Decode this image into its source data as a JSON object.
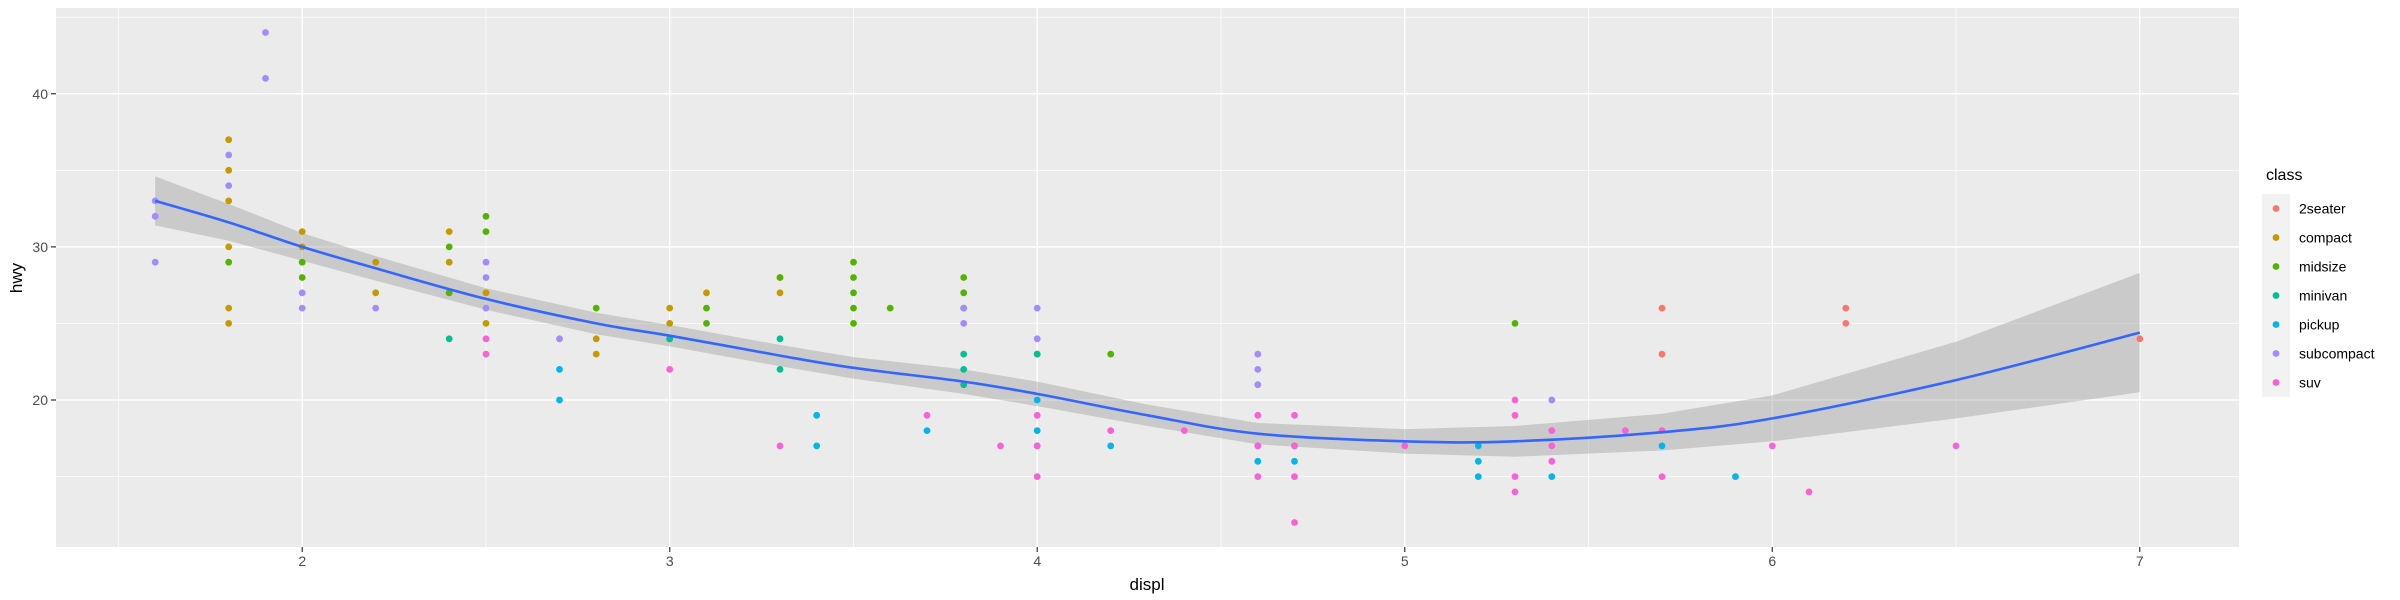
{
  "chart_data": {
    "type": "scatter",
    "title": "",
    "xlabel": "displ",
    "ylabel": "hwy",
    "xlim": [
      1.33,
      7.27
    ],
    "ylim": [
      10.4,
      45.6
    ],
    "x_ticks": [
      2,
      3,
      4,
      5,
      6,
      7
    ],
    "y_ticks": [
      20,
      30,
      40
    ],
    "grid": true,
    "legend": {
      "title": "class",
      "placement": "right"
    },
    "series": [
      {
        "name": "2seater",
        "color": "#F8766D",
        "points": [
          [
            5.7,
            26
          ],
          [
            5.7,
            23
          ],
          [
            6.2,
            26
          ],
          [
            6.2,
            25
          ],
          [
            7.0,
            24
          ]
        ]
      },
      {
        "name": "compact",
        "color": "#C49A00",
        "points": [
          [
            1.8,
            37
          ],
          [
            1.8,
            35
          ],
          [
            1.8,
            33
          ],
          [
            1.8,
            30
          ],
          [
            1.8,
            26
          ],
          [
            1.8,
            25
          ],
          [
            2.0,
            31
          ],
          [
            2.0,
            30
          ],
          [
            2.2,
            29
          ],
          [
            2.2,
            27
          ],
          [
            2.4,
            31
          ],
          [
            2.4,
            29
          ],
          [
            2.4,
            27
          ],
          [
            2.5,
            27
          ],
          [
            2.5,
            25
          ],
          [
            2.8,
            24
          ],
          [
            2.8,
            23
          ],
          [
            3.0,
            26
          ],
          [
            3.0,
            25
          ],
          [
            3.1,
            27
          ],
          [
            3.3,
            28
          ],
          [
            3.3,
            27
          ]
        ]
      },
      {
        "name": "midsize",
        "color": "#53B400",
        "points": [
          [
            1.8,
            29
          ],
          [
            2.0,
            29
          ],
          [
            2.0,
            28
          ],
          [
            2.4,
            30
          ],
          [
            2.4,
            27
          ],
          [
            2.5,
            32
          ],
          [
            2.5,
            31
          ],
          [
            2.8,
            26
          ],
          [
            3.0,
            24
          ],
          [
            3.1,
            26
          ],
          [
            3.1,
            25
          ],
          [
            3.3,
            28
          ],
          [
            3.5,
            29
          ],
          [
            3.5,
            28
          ],
          [
            3.5,
            27
          ],
          [
            3.5,
            26
          ],
          [
            3.5,
            25
          ],
          [
            3.6,
            26
          ],
          [
            3.8,
            28
          ],
          [
            3.8,
            27
          ],
          [
            3.8,
            26
          ],
          [
            4.0,
            23
          ],
          [
            4.2,
            23
          ],
          [
            5.3,
            25
          ]
        ]
      },
      {
        "name": "minivan",
        "color": "#00C094",
        "points": [
          [
            2.4,
            24
          ],
          [
            3.0,
            24
          ],
          [
            3.3,
            24
          ],
          [
            3.3,
            22
          ],
          [
            3.8,
            23
          ],
          [
            3.8,
            22
          ],
          [
            3.8,
            21
          ],
          [
            4.0,
            23
          ]
        ]
      },
      {
        "name": "pickup",
        "color": "#00B6EB",
        "points": [
          [
            2.7,
            22
          ],
          [
            2.7,
            20
          ],
          [
            3.4,
            19
          ],
          [
            3.4,
            17
          ],
          [
            3.7,
            18
          ],
          [
            4.0,
            20
          ],
          [
            4.0,
            18
          ],
          [
            4.0,
            17
          ],
          [
            4.2,
            17
          ],
          [
            4.6,
            17
          ],
          [
            4.6,
            16
          ],
          [
            4.7,
            17
          ],
          [
            4.7,
            16
          ],
          [
            5.2,
            17
          ],
          [
            5.2,
            16
          ],
          [
            5.2,
            15
          ],
          [
            5.4,
            15
          ],
          [
            5.7,
            17
          ],
          [
            5.9,
            15
          ]
        ]
      },
      {
        "name": "subcompact",
        "color": "#A58AFF",
        "points": [
          [
            1.6,
            33
          ],
          [
            1.6,
            32
          ],
          [
            1.6,
            29
          ],
          [
            1.8,
            36
          ],
          [
            1.8,
            34
          ],
          [
            1.9,
            44
          ],
          [
            1.9,
            41
          ],
          [
            2.0,
            27
          ],
          [
            2.0,
            26
          ],
          [
            2.2,
            26
          ],
          [
            2.5,
            29
          ],
          [
            2.5,
            28
          ],
          [
            2.5,
            26
          ],
          [
            2.7,
            24
          ],
          [
            3.8,
            26
          ],
          [
            3.8,
            25
          ],
          [
            4.0,
            26
          ],
          [
            4.0,
            24
          ],
          [
            4.6,
            23
          ],
          [
            4.6,
            22
          ],
          [
            4.6,
            21
          ],
          [
            5.4,
            20
          ]
        ]
      },
      {
        "name": "suv",
        "color": "#FB61D7",
        "points": [
          [
            2.5,
            24
          ],
          [
            2.5,
            23
          ],
          [
            3.0,
            22
          ],
          [
            3.3,
            17
          ],
          [
            3.7,
            19
          ],
          [
            3.9,
            17
          ],
          [
            4.0,
            19
          ],
          [
            4.0,
            17
          ],
          [
            4.0,
            15
          ],
          [
            4.2,
            18
          ],
          [
            4.4,
            18
          ],
          [
            4.6,
            19
          ],
          [
            4.6,
            17
          ],
          [
            4.6,
            15
          ],
          [
            4.7,
            19
          ],
          [
            4.7,
            17
          ],
          [
            4.7,
            15
          ],
          [
            4.7,
            12
          ],
          [
            5.0,
            17
          ],
          [
            5.3,
            20
          ],
          [
            5.3,
            19
          ],
          [
            5.3,
            15
          ],
          [
            5.3,
            14
          ],
          [
            5.4,
            18
          ],
          [
            5.4,
            17
          ],
          [
            5.4,
            16
          ],
          [
            5.6,
            18
          ],
          [
            5.7,
            18
          ],
          [
            5.7,
            15
          ],
          [
            6.0,
            17
          ],
          [
            6.1,
            14
          ],
          [
            6.5,
            17
          ]
        ]
      }
    ],
    "smooth": {
      "color": "#3366FF",
      "x": [
        1.6,
        1.8,
        2.0,
        2.2,
        2.5,
        2.8,
        3.0,
        3.3,
        3.5,
        3.8,
        4.0,
        4.3,
        4.6,
        5.0,
        5.3,
        5.7,
        6.0,
        6.5,
        7.0
      ],
      "y": [
        33.0,
        31.6,
        30.0,
        28.6,
        26.6,
        25.0,
        24.2,
        22.9,
        22.1,
        21.2,
        20.4,
        19.0,
        17.8,
        17.3,
        17.3,
        17.9,
        18.8,
        21.3,
        24.4
      ],
      "lower": [
        31.4,
        30.4,
        29.1,
        27.8,
        25.9,
        24.3,
        23.5,
        22.2,
        21.4,
        20.4,
        19.6,
        18.3,
        17.1,
        16.5,
        16.3,
        16.7,
        17.3,
        18.8,
        20.5
      ],
      "upper": [
        34.6,
        32.8,
        30.9,
        29.4,
        27.3,
        25.7,
        24.9,
        23.6,
        22.8,
        22.0,
        21.2,
        19.7,
        18.5,
        18.1,
        18.3,
        19.1,
        20.3,
        23.8,
        28.3
      ]
    }
  }
}
